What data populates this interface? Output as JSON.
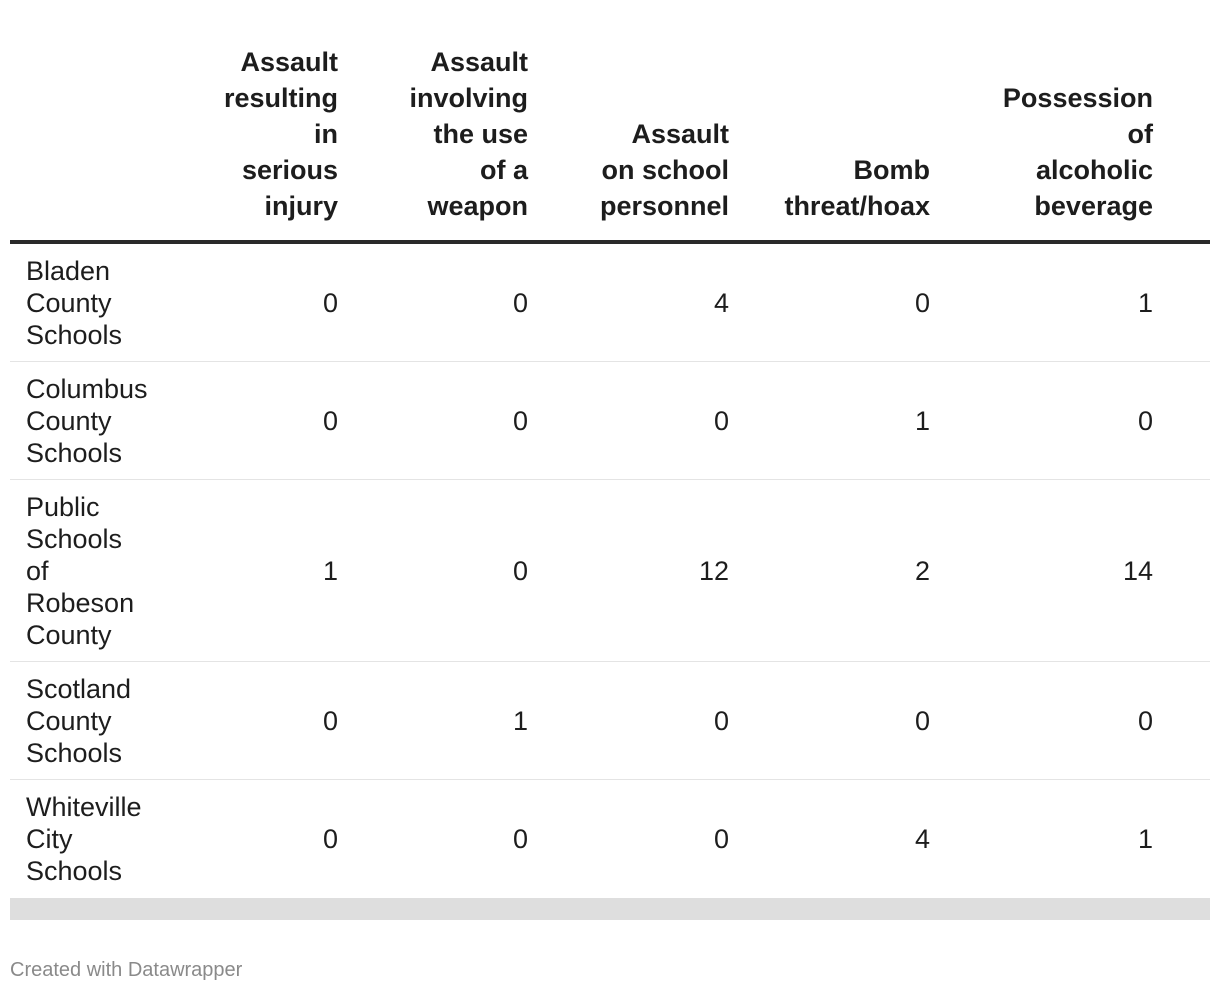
{
  "chart_data": {
    "type": "table",
    "columns": [
      "",
      "Assault\nresulting\nin\nserious\ninjury",
      "Assault\ninvolving\nthe use\nof a\nweapon",
      "Assault\non school\npersonnel",
      "Bomb\nthreat/hoax",
      "Possession\nof\nalcoholic\nbeverage"
    ],
    "rows": [
      {
        "name": "Bladen County Schools",
        "values": [
          "0",
          "0",
          "4",
          "0",
          "1"
        ]
      },
      {
        "name": "Columbus County Schools",
        "values": [
          "0",
          "0",
          "0",
          "1",
          "0"
        ]
      },
      {
        "name": "Public Schools of Robeson County",
        "values": [
          "1",
          "0",
          "12",
          "2",
          "14"
        ]
      },
      {
        "name": "Scotland County Schools",
        "values": [
          "0",
          "1",
          "0",
          "0",
          "0"
        ]
      },
      {
        "name": "Whiteville City Schools",
        "values": [
          "0",
          "0",
          "0",
          "4",
          "1"
        ]
      }
    ]
  },
  "footer": {
    "credit": "Created with Datawrapper"
  }
}
